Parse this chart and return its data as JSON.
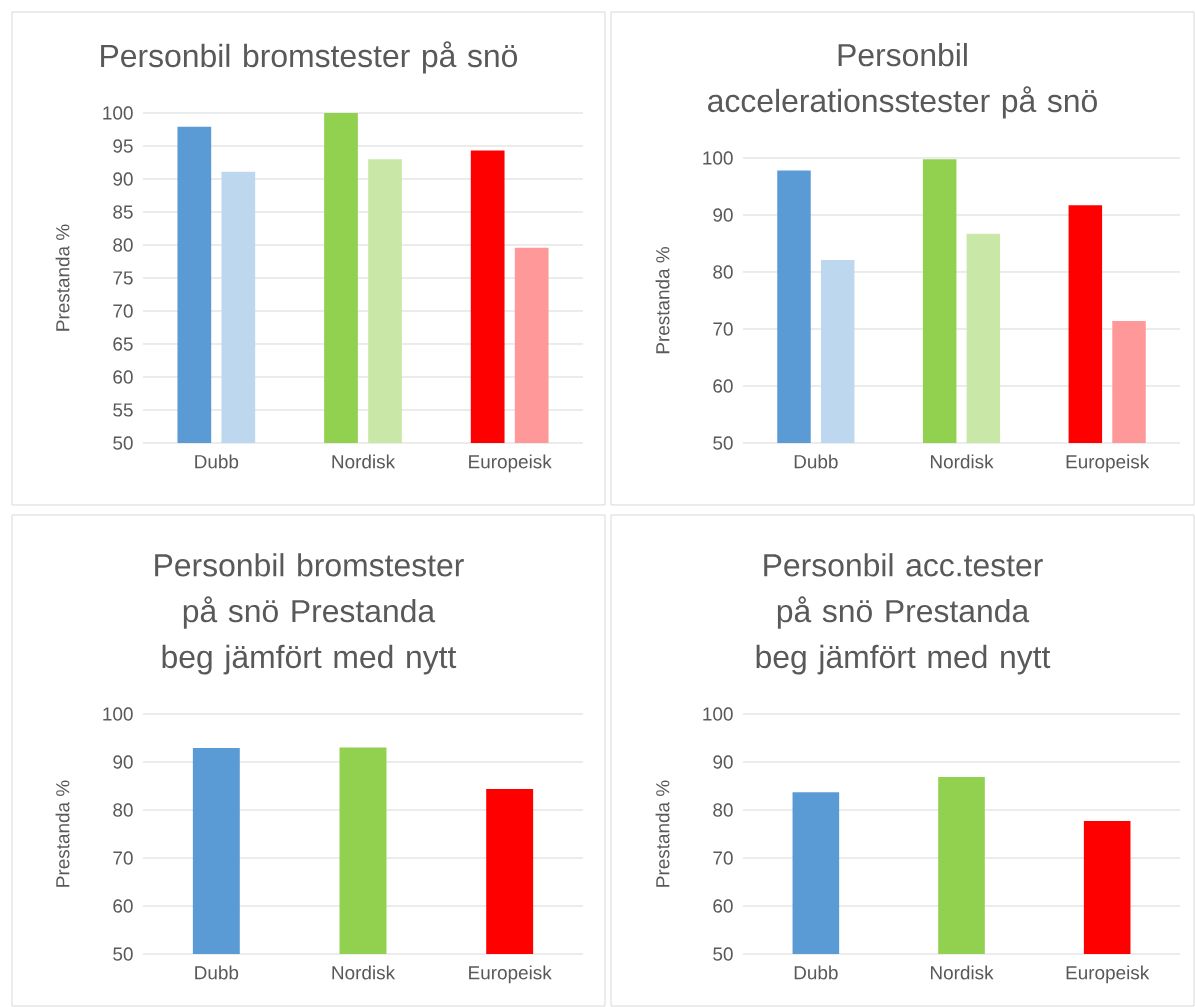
{
  "chart_data": [
    {
      "type": "bar",
      "title": "Personbil bromstester på snö",
      "ylabel": "Prestanda %",
      "categories": [
        "Dubb",
        "Nordisk",
        "Europeisk"
      ],
      "series": [
        {
          "colors": [
            "#5b9bd5",
            "#92d050",
            "#ff0000"
          ],
          "values": [
            97.9,
            100,
            94.3
          ]
        },
        {
          "colors": [
            "#bdd7ee",
            "#c9e8a7",
            "#ff9999"
          ],
          "values": [
            91.1,
            93.0,
            79.6
          ]
        }
      ],
      "ylim": [
        50,
        100
      ],
      "yticks": [
        50,
        55,
        60,
        65,
        70,
        75,
        80,
        85,
        90,
        95,
        100
      ],
      "grid": "y"
    },
    {
      "type": "bar",
      "title": "Personbil accelerationsstester på snö",
      "ylabel": "Prestanda %",
      "categories": [
        "Dubb",
        "Nordisk",
        "Europeisk"
      ],
      "series": [
        {
          "colors": [
            "#5b9bd5",
            "#92d050",
            "#ff0000"
          ],
          "values": [
            97.8,
            99.8,
            91.7
          ]
        },
        {
          "colors": [
            "#bdd7ee",
            "#c9e8a7",
            "#ff9999"
          ],
          "values": [
            82.1,
            86.7,
            71.4
          ]
        }
      ],
      "ylim": [
        50,
        100
      ],
      "yticks": [
        50,
        60,
        70,
        80,
        90,
        100
      ],
      "grid": "y"
    },
    {
      "type": "bar",
      "title": "Personbil bromstester på snö Prestanda beg jämfört med nytt",
      "ylabel": "Prestanda %",
      "categories": [
        "Dubb",
        "Nordisk",
        "Europeisk"
      ],
      "series": [
        {
          "colors": [
            "#5b9bd5",
            "#92d050",
            "#ff0000"
          ],
          "values": [
            92.9,
            93.0,
            84.4
          ]
        }
      ],
      "ylim": [
        50,
        100
      ],
      "yticks": [
        50,
        60,
        70,
        80,
        90,
        100
      ],
      "grid": "y"
    },
    {
      "type": "bar",
      "title": "Personbil acc.tester på snö Prestanda beg jämfört med nytt",
      "ylabel": "Prestanda %",
      "categories": [
        "Dubb",
        "Nordisk",
        "Europeisk"
      ],
      "series": [
        {
          "colors": [
            "#5b9bd5",
            "#92d050",
            "#ff0000"
          ],
          "values": [
            83.7,
            86.9,
            77.7
          ]
        }
      ],
      "ylim": [
        50,
        100
      ],
      "yticks": [
        50,
        60,
        70,
        80,
        90,
        100
      ],
      "grid": "y"
    }
  ]
}
